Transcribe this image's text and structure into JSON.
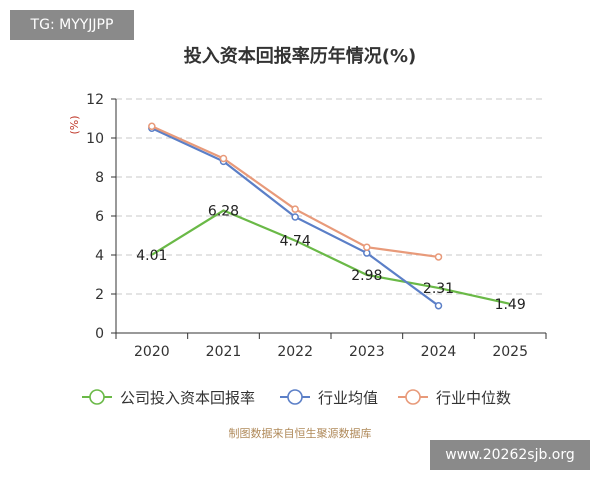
{
  "badge": {
    "text": "TG: MYYJJPP"
  },
  "watermark": {
    "text": "www.20262sjb.org"
  },
  "source": {
    "text": "制图数据来自恒生聚源数据库"
  },
  "chart_data": {
    "type": "line",
    "title": "投入资本回报率历年情况(%)",
    "ylabel": "(%)",
    "xlabel": "",
    "categories": [
      "2020",
      "2021",
      "2022",
      "2023",
      "2024",
      "2025"
    ],
    "ylim": [
      0,
      12
    ],
    "yticks": [
      0,
      2,
      4,
      6,
      8,
      10,
      12
    ],
    "grid": true,
    "legend_position": "bottom",
    "series": [
      {
        "name": "公司投入资本回报率",
        "color": "#6ab947",
        "values": [
          4.01,
          6.28,
          4.74,
          2.98,
          2.31,
          1.49
        ],
        "labels": [
          "4.01",
          "6.28",
          "4.74",
          "2.98",
          "2.31",
          "1.49"
        ],
        "show_markers": false
      },
      {
        "name": "行业均值",
        "color": "#5b7fc7",
        "values": [
          10.5,
          8.8,
          5.95,
          4.1,
          1.4,
          null
        ],
        "show_markers": true
      },
      {
        "name": "行业中位数",
        "color": "#e89a7a",
        "values": [
          10.6,
          8.95,
          6.35,
          4.4,
          3.9,
          null
        ],
        "show_markers": true
      }
    ]
  }
}
